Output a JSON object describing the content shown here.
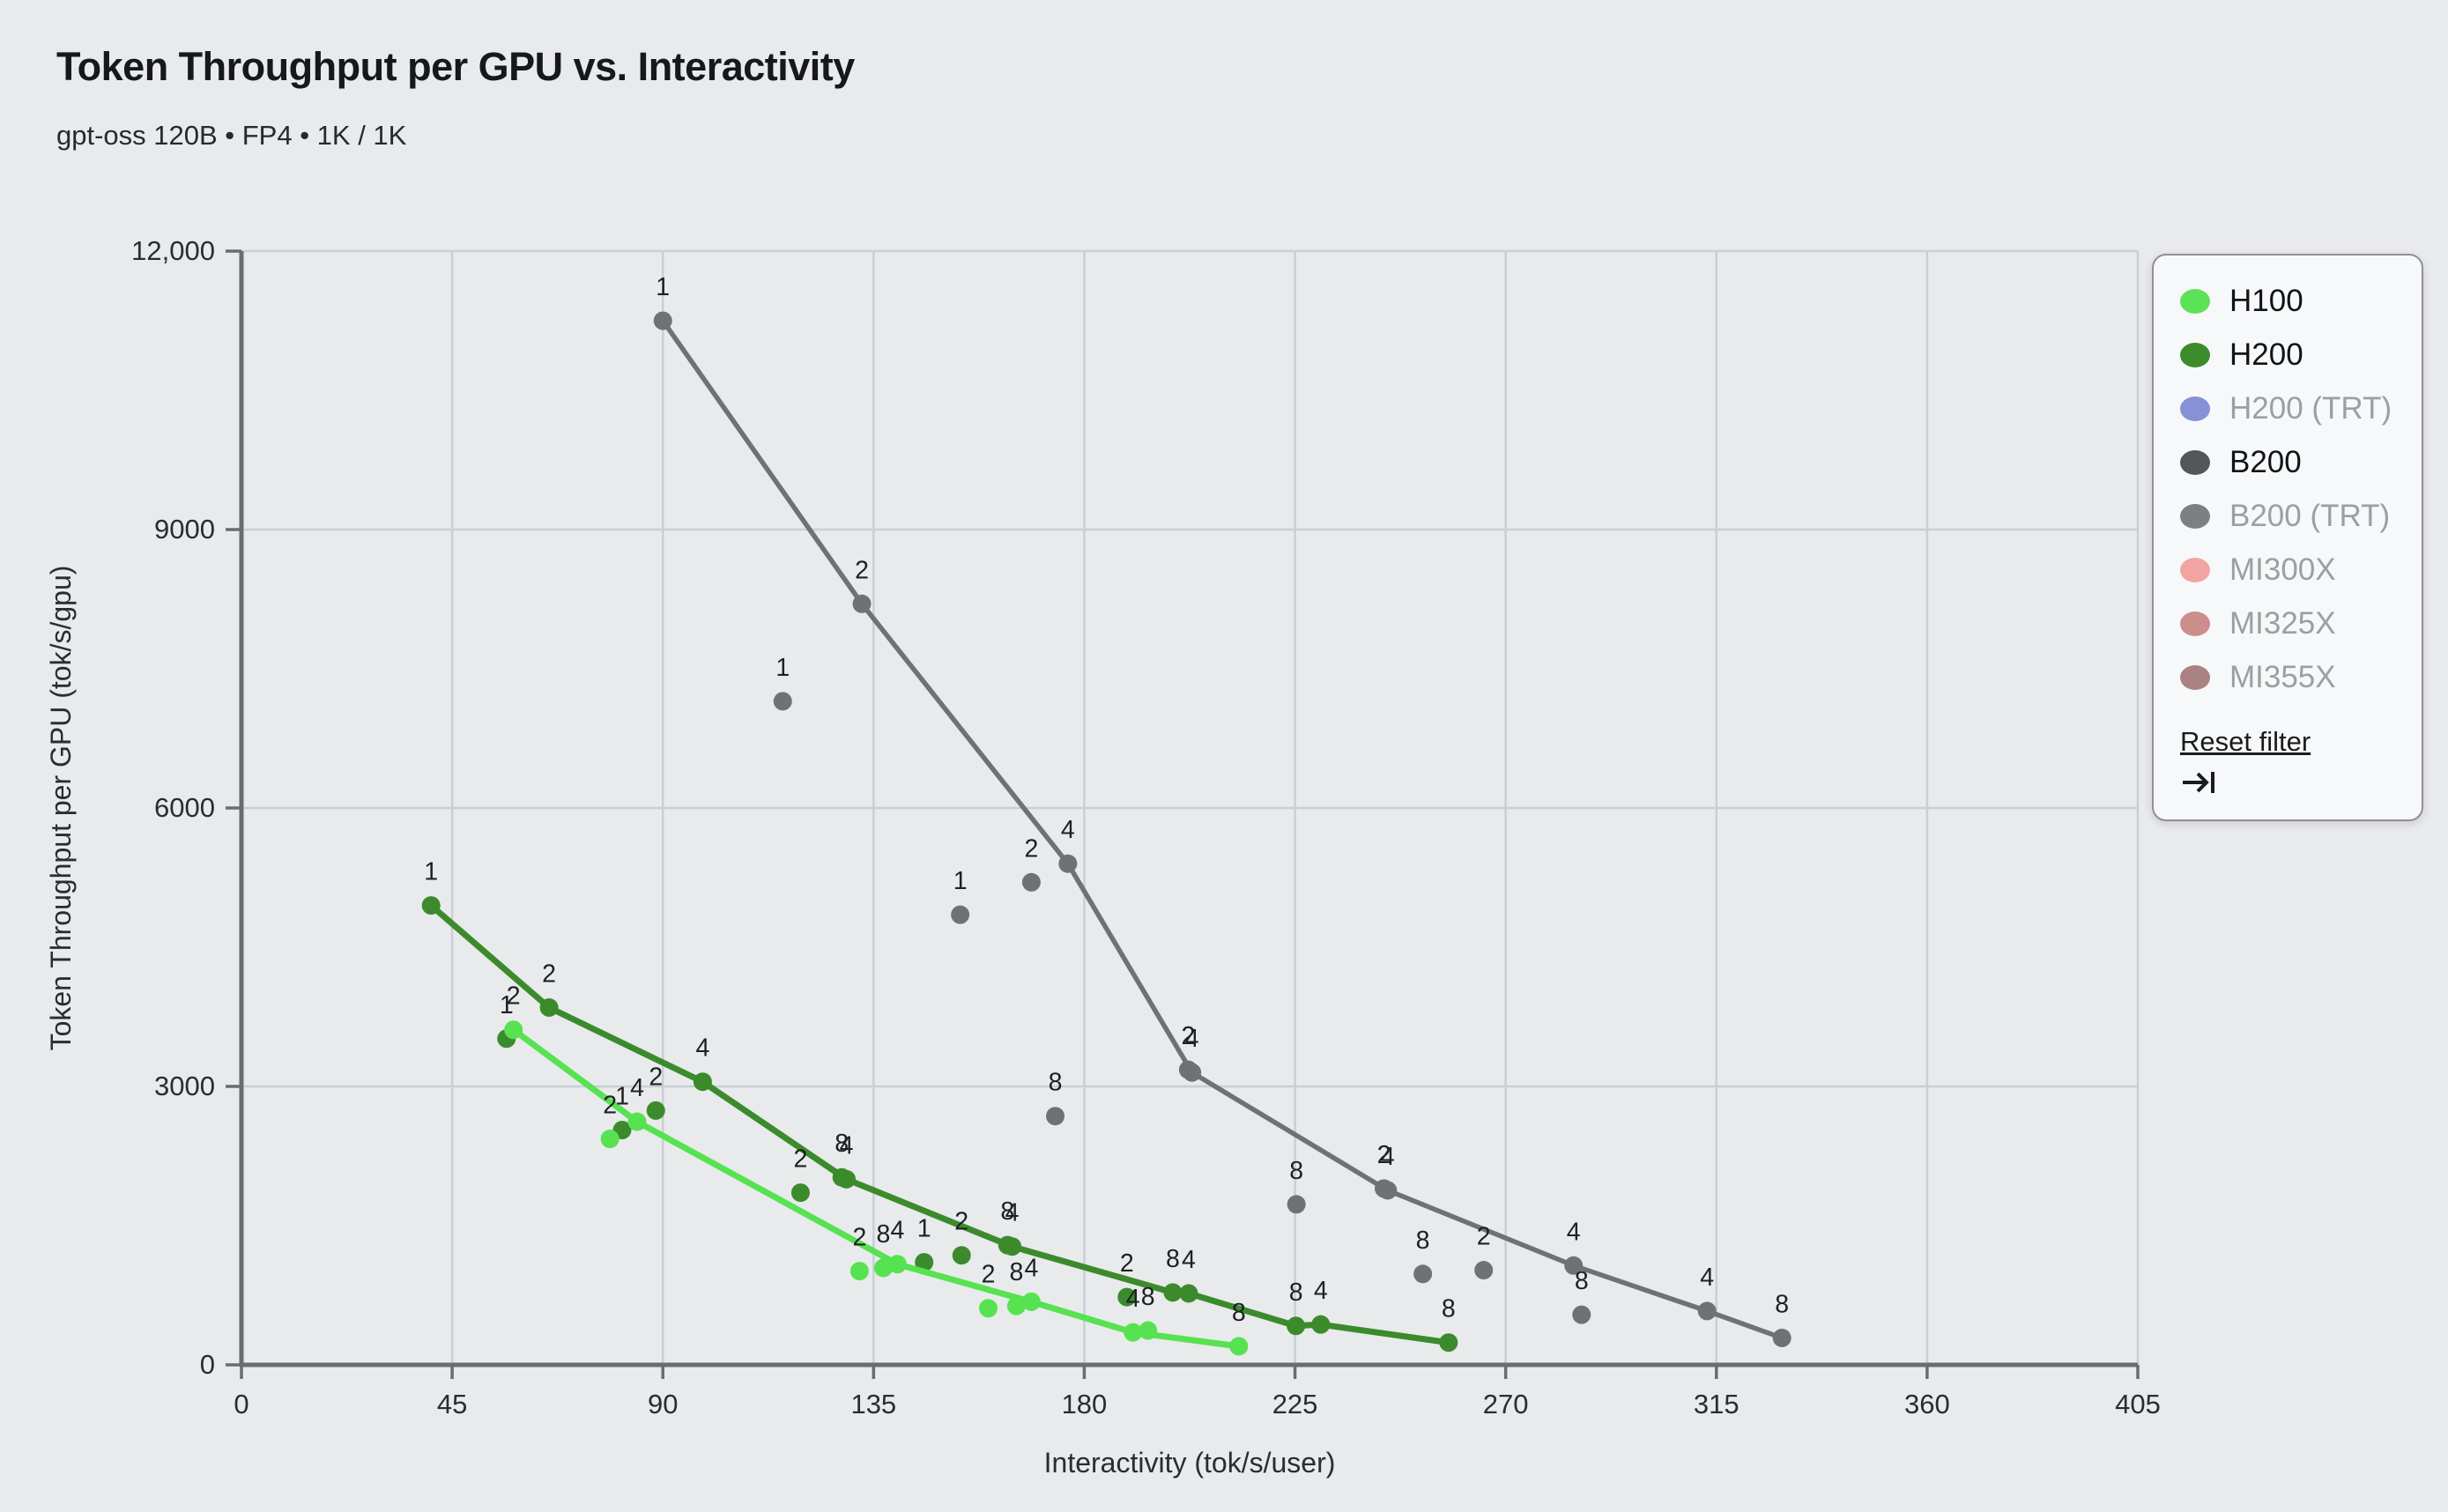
{
  "header": {
    "title": "Token Throughput per GPU vs. Interactivity",
    "subtitle": "gpt-oss 120B • FP4 • 1K / 1K"
  },
  "legend": {
    "reset_label": "Reset filter",
    "items": [
      {
        "label": "H100",
        "color": "#5ce257",
        "active": true
      },
      {
        "label": "H200",
        "color": "#3c8b2d",
        "active": true
      },
      {
        "label": "H200 (TRT)",
        "color": "#8691d6",
        "active": false
      },
      {
        "label": "B200",
        "color": "#545658",
        "active": true
      },
      {
        "label": "B200 (TRT)",
        "color": "#7d7f81",
        "active": false
      },
      {
        "label": "MI300X",
        "color": "#f1a4a1",
        "active": false
      },
      {
        "label": "MI325X",
        "color": "#cc8e8c",
        "active": false
      },
      {
        "label": "MI355X",
        "color": "#a98281",
        "active": false
      }
    ]
  },
  "chart_data": {
    "type": "scatter",
    "title": "Token Throughput per GPU vs. Interactivity",
    "subtitle": "gpt-oss 120B • FP4 • 1K / 1K",
    "xlabel": "Interactivity (tok/s/user)",
    "ylabel": "Token Throughput per GPU (tok/s/gpu)",
    "xlim": [
      0,
      405
    ],
    "ylim": [
      0,
      12000
    ],
    "grid": true,
    "legend_position": "top-right",
    "point_labels_shown": true,
    "xticks": [
      {
        "v": 0,
        "label": "0"
      },
      {
        "v": 45,
        "label": "45"
      },
      {
        "v": 90,
        "label": "90"
      },
      {
        "v": 135,
        "label": "135"
      },
      {
        "v": 180,
        "label": "180"
      },
      {
        "v": 225,
        "label": "225"
      },
      {
        "v": 270,
        "label": "270"
      },
      {
        "v": 315,
        "label": "315"
      },
      {
        "v": 360,
        "label": "360"
      },
      {
        "v": 405,
        "label": "405"
      }
    ],
    "yticks": [
      {
        "v": 0,
        "label": "0"
      },
      {
        "v": 3000,
        "label": "3000"
      },
      {
        "v": 6000,
        "label": "6000"
      },
      {
        "v": 9000,
        "label": "9000"
      },
      {
        "v": 12000,
        "label": "12,000"
      }
    ],
    "series": [
      {
        "name": "B200",
        "color": "#6f7173",
        "line_width": 5.5,
        "line_points": [
          {
            "x": 90,
            "y": 11250,
            "label": "1"
          },
          {
            "x": 132.5,
            "y": 8200,
            "label": "2"
          },
          {
            "x": 176.5,
            "y": 5400,
            "label": "4"
          },
          {
            "x": 203,
            "y": 3150,
            "label": "4"
          },
          {
            "x": 244.8,
            "y": 1880,
            "label": "4"
          },
          {
            "x": 284.5,
            "y": 1070,
            "label": "4"
          },
          {
            "x": 313,
            "y": 580,
            "label": "4"
          },
          {
            "x": 329,
            "y": 290,
            "label": "8"
          }
        ],
        "scatter_points": [
          {
            "x": 202.2,
            "y": 3180,
            "label": "2"
          },
          {
            "x": 244,
            "y": 1900,
            "label": "2"
          },
          {
            "x": 115.6,
            "y": 7150,
            "label": "1"
          },
          {
            "x": 153.5,
            "y": 4850,
            "label": "1"
          },
          {
            "x": 168.7,
            "y": 5200,
            "label": "2"
          },
          {
            "x": 173.8,
            "y": 2680,
            "label": "8"
          },
          {
            "x": 225.3,
            "y": 1730,
            "label": "8"
          },
          {
            "x": 252.3,
            "y": 980,
            "label": "8"
          },
          {
            "x": 265.3,
            "y": 1020,
            "label": "2"
          },
          {
            "x": 286.2,
            "y": 540,
            "label": "8"
          }
        ]
      },
      {
        "name": "H200",
        "color": "#3b8b2d",
        "line_width": 7,
        "line_points": [
          {
            "x": 40.5,
            "y": 4950,
            "label": "1"
          },
          {
            "x": 65.7,
            "y": 3850,
            "label": "2"
          },
          {
            "x": 98.5,
            "y": 3050,
            "label": "4"
          },
          {
            "x": 129.2,
            "y": 2000,
            "label": "4"
          },
          {
            "x": 164.6,
            "y": 1275,
            "label": "4"
          },
          {
            "x": 198.9,
            "y": 780,
            "label": "8"
          },
          {
            "x": 202.3,
            "y": 770,
            "label": "4"
          },
          {
            "x": 225.2,
            "y": 420,
            "label": "8"
          },
          {
            "x": 230.5,
            "y": 435,
            "label": "4"
          },
          {
            "x": 257.8,
            "y": 240,
            "label": "8"
          }
        ],
        "scatter_points": [
          {
            "x": 128.2,
            "y": 2020,
            "label": "8"
          },
          {
            "x": 163.6,
            "y": 1290,
            "label": "8"
          },
          {
            "x": 56.6,
            "y": 3515,
            "label": "1"
          },
          {
            "x": 81.3,
            "y": 2530,
            "label": "1"
          },
          {
            "x": 88.5,
            "y": 2740,
            "label": "2"
          },
          {
            "x": 119.4,
            "y": 1855,
            "label": "2"
          },
          {
            "x": 145.8,
            "y": 1105,
            "label": "1"
          },
          {
            "x": 153.8,
            "y": 1180,
            "label": "2"
          },
          {
            "x": 189.1,
            "y": 730,
            "label": "2"
          }
        ]
      },
      {
        "name": "H100",
        "color": "#57e251",
        "line_width": 7,
        "line_points": [
          {
            "x": 58.1,
            "y": 3610,
            "label": "2"
          },
          {
            "x": 84.5,
            "y": 2620,
            "label": "4"
          },
          {
            "x": 140.1,
            "y": 1085,
            "label": "4"
          },
          {
            "x": 168.7,
            "y": 680,
            "label": "4"
          },
          {
            "x": 190.4,
            "y": 350,
            "label": "4"
          },
          {
            "x": 213,
            "y": 200,
            "label": "8"
          }
        ],
        "scatter_points": [
          {
            "x": 78.7,
            "y": 2435,
            "label": "2"
          },
          {
            "x": 132,
            "y": 1010,
            "label": "2"
          },
          {
            "x": 137.1,
            "y": 1045,
            "label": "8"
          },
          {
            "x": 159.5,
            "y": 610,
            "label": "2"
          },
          {
            "x": 165.5,
            "y": 635,
            "label": "8"
          },
          {
            "x": 193.6,
            "y": 370,
            "label": "8"
          }
        ]
      }
    ],
    "colors": {
      "background": "#e9eaec",
      "gridline": "#c7cfd7",
      "axis": "#6a6c6e",
      "tick_text": "#2a2c2e",
      "point_label_text": "#1e2022"
    }
  }
}
